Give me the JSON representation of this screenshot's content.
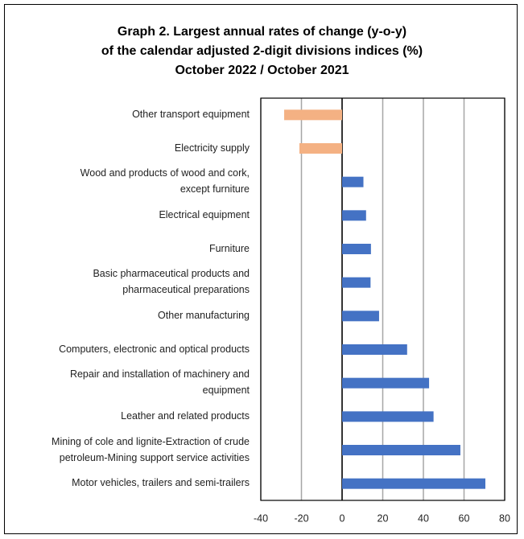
{
  "chart_data": {
    "type": "barh",
    "title": "Graph 2. Largest annual rates of change (y-o-y)\nof the calendar adjusted 2-digit divisions indices (%)\nOctober 2022 / October 2021",
    "categories": [
      "Other transport equipment",
      "Electricity supply",
      "Wood and products of wood and cork,\nexcept furniture",
      "Electrical equipment",
      "Furniture",
      "Basic pharmaceutical products and\npharmaceutical preparations",
      "Other manufacturing",
      "Computers, electronic and optical products",
      "Repair and installation of machinery and\nequipment",
      "Leather and related products",
      "Mining of cole and lignite-Extraction of crude\npetroleum-Mining support service activities",
      "Motor vehicles, trailers and semi-trailers"
    ],
    "values": [
      -28.5,
      -21,
      10.5,
      11.8,
      14.2,
      14,
      18.2,
      32,
      42.8,
      45,
      58.2,
      70.5
    ],
    "colors": [
      "#f4b183",
      "#f4b183",
      "#4472c4",
      "#4472c4",
      "#4472c4",
      "#4472c4",
      "#4472c4",
      "#4472c4",
      "#4472c4",
      "#4472c4",
      "#4472c4",
      "#4472c4"
    ],
    "xlim": [
      -40,
      80
    ],
    "xticks": [
      -40,
      -20,
      0,
      20,
      40,
      60,
      80
    ],
    "grid": true
  }
}
